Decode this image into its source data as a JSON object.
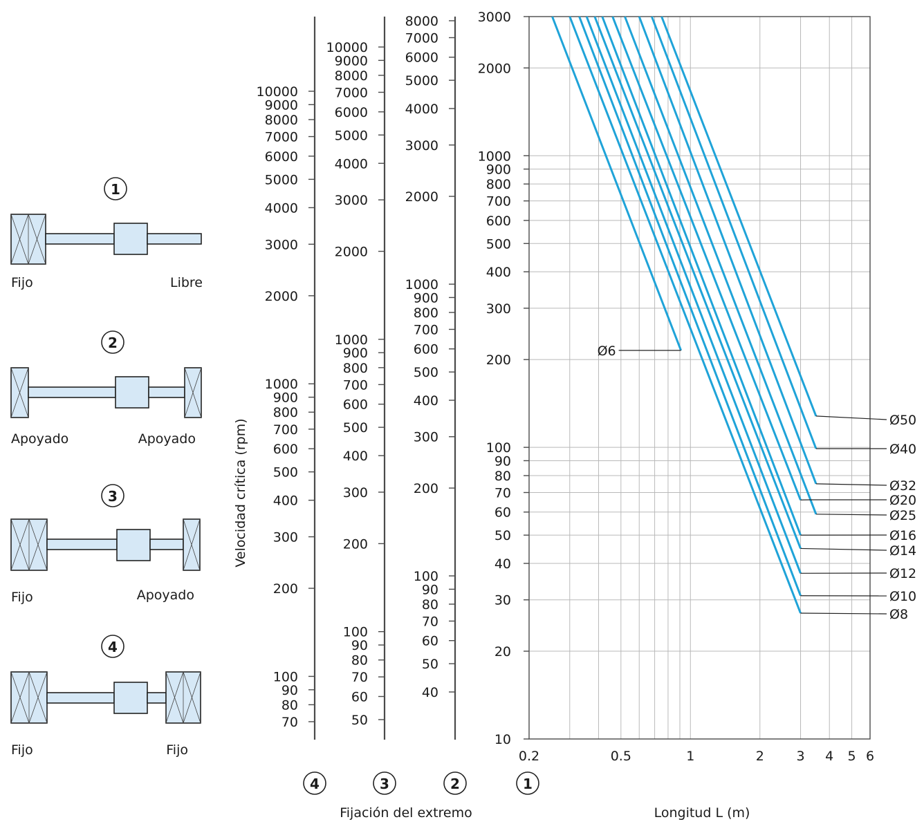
{
  "chart_data": {
    "type": "line",
    "x_axis": {
      "label": "Longitud L (m)",
      "scale": "log",
      "range": [
        0.2,
        6
      ],
      "ticks": [
        0.2,
        0.5,
        1,
        2,
        3,
        4,
        5,
        6
      ],
      "tick_labels": [
        "0.2",
        "0.5",
        "1",
        "2",
        "3",
        "4",
        "5",
        "6"
      ]
    },
    "y_axis": {
      "label": "Velocidad crítica (rpm)",
      "scale": "log",
      "range": [
        10,
        3000
      ],
      "tick_labels": [
        "3000",
        "2000",
        "1000",
        "900",
        "800",
        "700",
        "600",
        "500",
        "400",
        "300",
        "200",
        "100",
        "90",
        "80",
        "70",
        "60",
        "50",
        "40",
        "30",
        "20",
        "10"
      ]
    },
    "fixation_scales": [
      {
        "id": "4",
        "tick_labels": [
          "10000",
          "9000",
          "8000",
          "7000",
          "6000",
          "5000",
          "4000",
          "3000",
          "2000",
          "1000",
          "900",
          "800",
          "700",
          "600",
          "500",
          "400",
          "300",
          "200",
          "100",
          "90",
          "80",
          "70"
        ]
      },
      {
        "id": "3",
        "tick_labels": [
          "10000",
          "9000",
          "8000",
          "7000",
          "6000",
          "5000",
          "4000",
          "3000",
          "2000",
          "1000",
          "900",
          "800",
          "700",
          "600",
          "500",
          "400",
          "300",
          "200",
          "100",
          "90",
          "80",
          "70",
          "60",
          "50"
        ]
      },
      {
        "id": "2",
        "tick_labels": [
          "8000",
          "7000",
          "6000",
          "5000",
          "4000",
          "3000",
          "2000",
          "1000",
          "900",
          "800",
          "700",
          "600",
          "500",
          "400",
          "300",
          "200",
          "100",
          "90",
          "80",
          "70",
          "60",
          "50",
          "40"
        ]
      }
    ],
    "fixation_selector_labels": [
      "4",
      "3",
      "2",
      "1"
    ],
    "fixation_axis_label": "Fijación del extremo",
    "series": [
      {
        "name": "Ø6",
        "points": [
          [
            0.252,
            3000
          ],
          [
            0.91,
            215
          ]
        ]
      },
      {
        "name": "Ø8",
        "points": [
          [
            0.3,
            3000
          ],
          [
            3.0,
            27
          ]
        ]
      },
      {
        "name": "Ø10",
        "points": [
          [
            0.33,
            3000
          ],
          [
            3.0,
            31
          ]
        ]
      },
      {
        "name": "Ø12",
        "points": [
          [
            0.355,
            3000
          ],
          [
            3.0,
            37
          ]
        ]
      },
      {
        "name": "Ø14",
        "points": [
          [
            0.385,
            3000
          ],
          [
            3.0,
            45
          ]
        ]
      },
      {
        "name": "Ø16",
        "points": [
          [
            0.415,
            3000
          ],
          [
            3.0,
            50
          ]
        ]
      },
      {
        "name": "Ø20",
        "points": [
          [
            0.46,
            3000
          ],
          [
            3.0,
            66
          ]
        ]
      },
      {
        "name": "Ø25",
        "points": [
          [
            0.52,
            3000
          ],
          [
            3.5,
            59
          ]
        ]
      },
      {
        "name": "Ø32",
        "points": [
          [
            0.6,
            3000
          ],
          [
            3.5,
            75
          ]
        ]
      },
      {
        "name": "Ø40",
        "points": [
          [
            0.68,
            3000
          ],
          [
            3.5,
            99
          ]
        ]
      },
      {
        "name": "Ø50",
        "points": [
          [
            0.75,
            3000
          ],
          [
            3.5,
            128
          ]
        ]
      }
    ],
    "series_color": "#1fa3d8",
    "grid": true
  },
  "mounting_diagrams": [
    {
      "number": "1",
      "left_label": "Fijo",
      "right_label": "Libre"
    },
    {
      "number": "2",
      "left_label": "Apoyado",
      "right_label": "Apoyado"
    },
    {
      "number": "3",
      "left_label": "Fijo",
      "right_label": "Apoyado"
    },
    {
      "number": "4",
      "left_label": "Fijo",
      "right_label": "Fijo"
    }
  ],
  "colors": {
    "diagram_fill": "#d6e8f6",
    "line": "#1fa3d8"
  }
}
